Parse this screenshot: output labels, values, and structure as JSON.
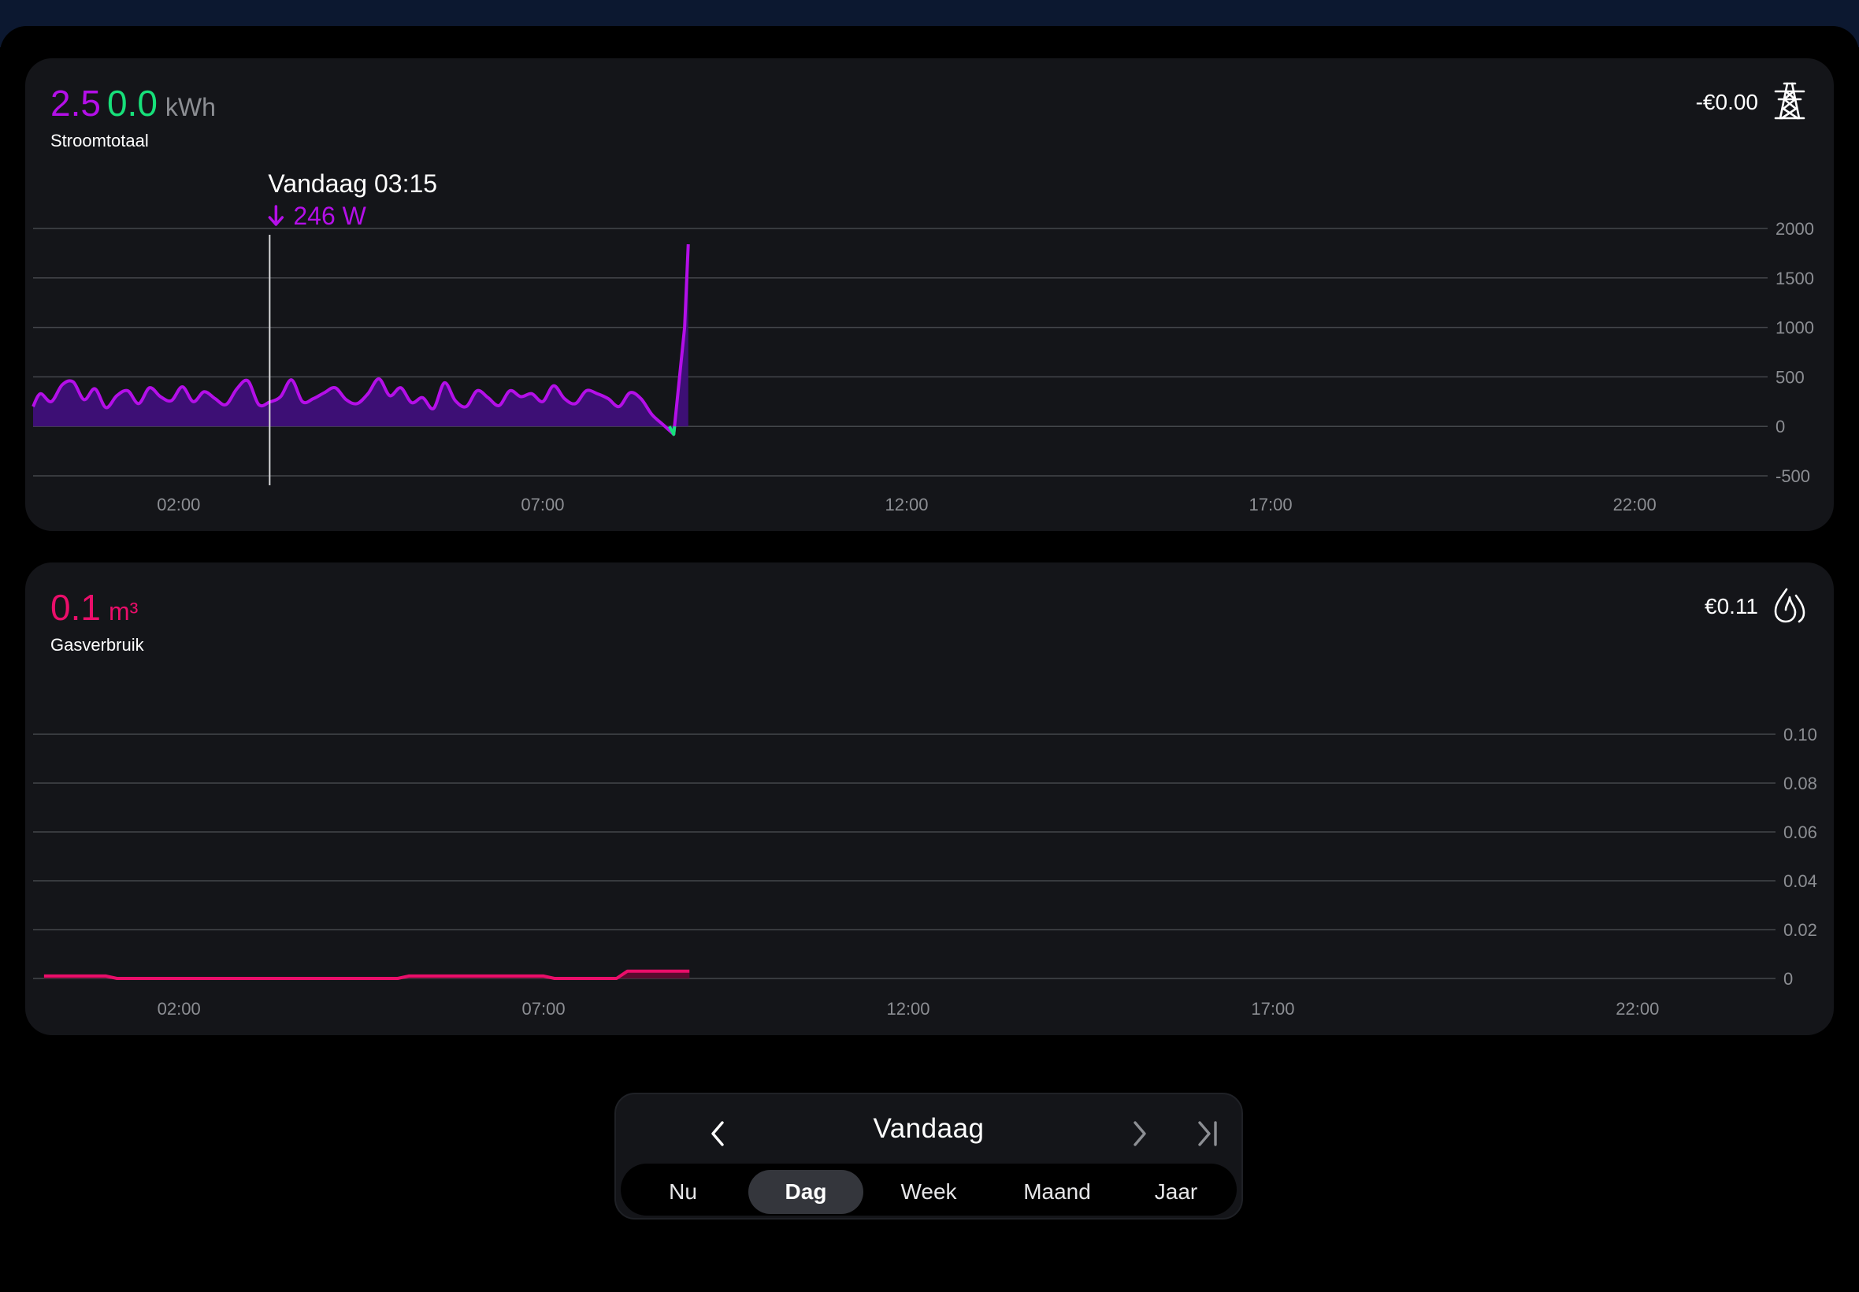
{
  "colors": {
    "import": "#b40fe8",
    "export": "#17e07a",
    "gas": "#ea0e6a",
    "grid": "#44464b",
    "card": "#141519"
  },
  "power": {
    "value_import": "2.5",
    "value_export": "0.0",
    "unit": "kWh",
    "label": "Stroomtotaal",
    "cost": "-€0.00",
    "icon": "power-pylon-icon",
    "tooltip": {
      "time": "Vandaag 03:15",
      "value": "246 W",
      "icon": "arrow-down-icon"
    }
  },
  "gas": {
    "value": "0.1",
    "unit": "m³",
    "label": "Gasverbruik",
    "cost": "€0.11",
    "icon": "flame-icon"
  },
  "nav": {
    "title": "Vandaag",
    "prev_icon": "chevron-left-icon",
    "next_icon": "chevron-right-icon",
    "last_icon": "skip-to-end-icon",
    "periods": [
      "Nu",
      "Dag",
      "Week",
      "Maand",
      "Jaar"
    ],
    "active_period": "Dag"
  },
  "chart_data": [
    {
      "type": "area",
      "x_unit": "hours",
      "x_ticks": [
        "02:00",
        "07:00",
        "12:00",
        "17:00",
        "22:00"
      ],
      "y_ticks": [
        "2000",
        "1500",
        "1000",
        "500",
        "0",
        "-500"
      ],
      "ylim": [
        -500,
        2000
      ],
      "xlim": [
        0,
        24
      ],
      "cursor_x": 3.25,
      "series": [
        {
          "x": [
            0,
            0.1,
            0.25,
            0.4,
            0.55,
            0.7,
            0.85,
            1.0,
            1.15,
            1.3,
            1.45,
            1.6,
            1.75,
            1.9,
            2.05,
            2.2,
            2.35,
            2.5,
            2.65,
            2.8,
            2.95,
            3.1,
            3.25,
            3.4,
            3.55,
            3.7,
            3.85,
            4.0,
            4.15,
            4.3,
            4.45,
            4.6,
            4.75,
            4.9,
            5.05,
            5.2,
            5.35,
            5.5,
            5.65,
            5.8,
            5.95,
            6.1,
            6.25,
            6.4,
            6.55,
            6.7,
            6.85,
            7.0,
            7.15,
            7.3,
            7.45,
            7.6,
            7.75,
            7.9,
            8.05,
            8.2,
            8.35,
            8.5,
            8.65,
            8.8,
            8.95,
            9.0
          ],
          "y": [
            200,
            330,
            250,
            420,
            450,
            270,
            380,
            190,
            310,
            360,
            230,
            390,
            300,
            260,
            400,
            250,
            350,
            280,
            220,
            380,
            460,
            220,
            246,
            300,
            470,
            250,
            280,
            340,
            390,
            270,
            230,
            330,
            480,
            310,
            390,
            240,
            290,
            180,
            440,
            260,
            200,
            360,
            290,
            210,
            360,
            300,
            330,
            250,
            410,
            280,
            230,
            360,
            330,
            280,
            200,
            340,
            280,
            120,
            20,
            -80,
            1000,
            1840
          ]
        }
      ]
    },
    {
      "type": "area",
      "x_unit": "hours",
      "x_ticks": [
        "02:00",
        "07:00",
        "12:00",
        "17:00",
        "22:00"
      ],
      "y_ticks": [
        "0.10",
        "0.08",
        "0.06",
        "0.04",
        "0.02",
        "0"
      ],
      "ylim": [
        0,
        0.1
      ],
      "xlim": [
        0,
        24
      ],
      "series": [
        {
          "x": [
            0.15,
            1.0,
            1.15,
            5.0,
            5.15,
            7.0,
            7.15,
            8.0,
            8.15,
            9.0
          ],
          "y": [
            0.001,
            0.001,
            0.0,
            0.0,
            0.001,
            0.001,
            0.0,
            0.0,
            0.003,
            0.003
          ]
        }
      ]
    }
  ]
}
